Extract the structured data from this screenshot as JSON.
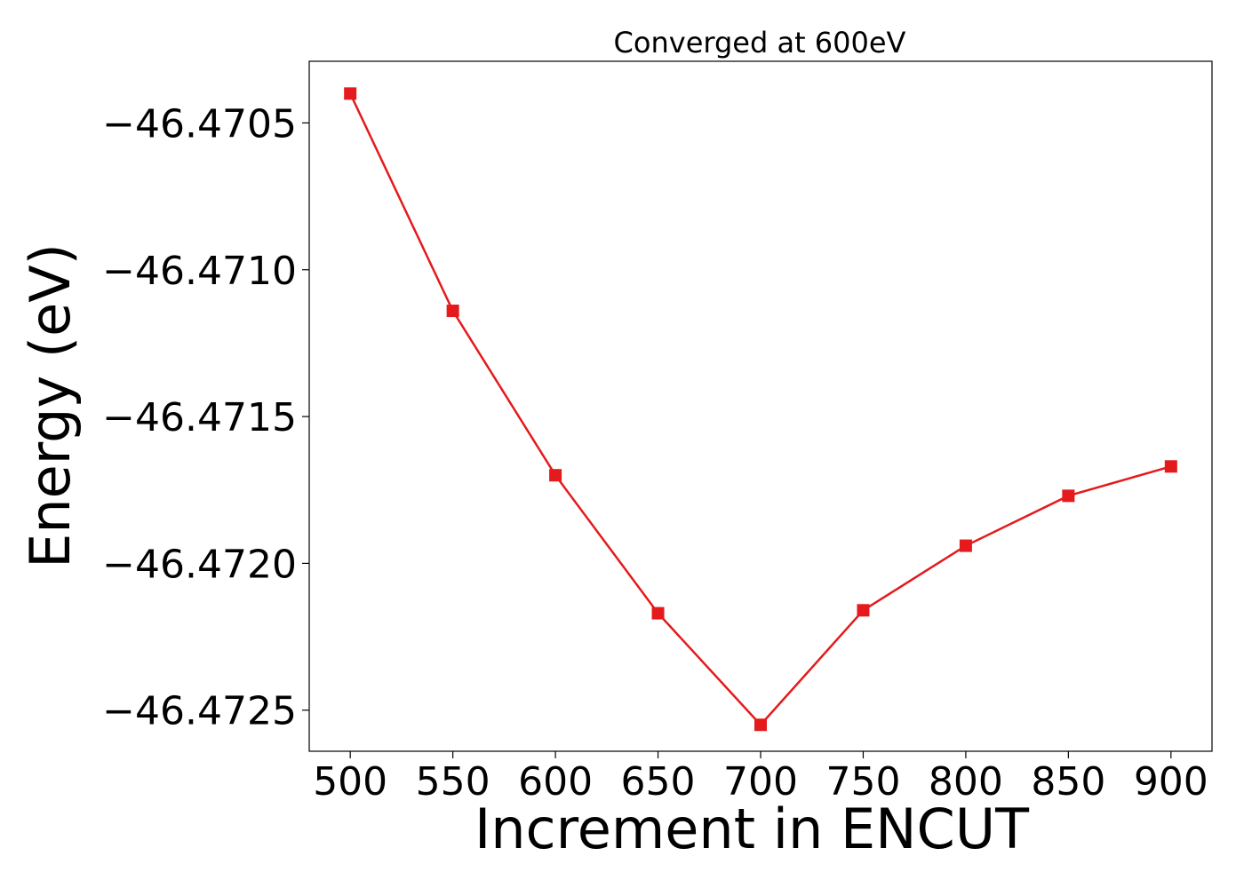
{
  "chart_data": {
    "type": "line",
    "title": "Converged at 600eV",
    "xlabel": "Increment in ENCUT",
    "ylabel": "Energy (eV)",
    "x": [
      500,
      550,
      600,
      650,
      700,
      750,
      800,
      850,
      900
    ],
    "series": [
      {
        "values": [
          -46.4704,
          -46.47114,
          -46.4717,
          -46.47217,
          -46.47255,
          -46.47216,
          -46.47194,
          -46.47177,
          -46.47167
        ],
        "color": "#e41a1c",
        "marker": "square"
      }
    ],
    "xticks": [
      500,
      550,
      600,
      650,
      700,
      750,
      800,
      850,
      900
    ],
    "xtick_labels": [
      "500",
      "550",
      "600",
      "650",
      "700",
      "750",
      "800",
      "850",
      "900"
    ],
    "yticks": [
      -46.4705,
      -46.471,
      -46.4715,
      -46.472,
      -46.4725
    ],
    "ytick_labels": [
      "−46.4705",
      "−46.4710",
      "−46.4715",
      "−46.4720",
      "−46.4725"
    ],
    "xlim": [
      480,
      920
    ],
    "ylim": [
      -46.47264,
      -46.47029
    ],
    "grid": false
  }
}
